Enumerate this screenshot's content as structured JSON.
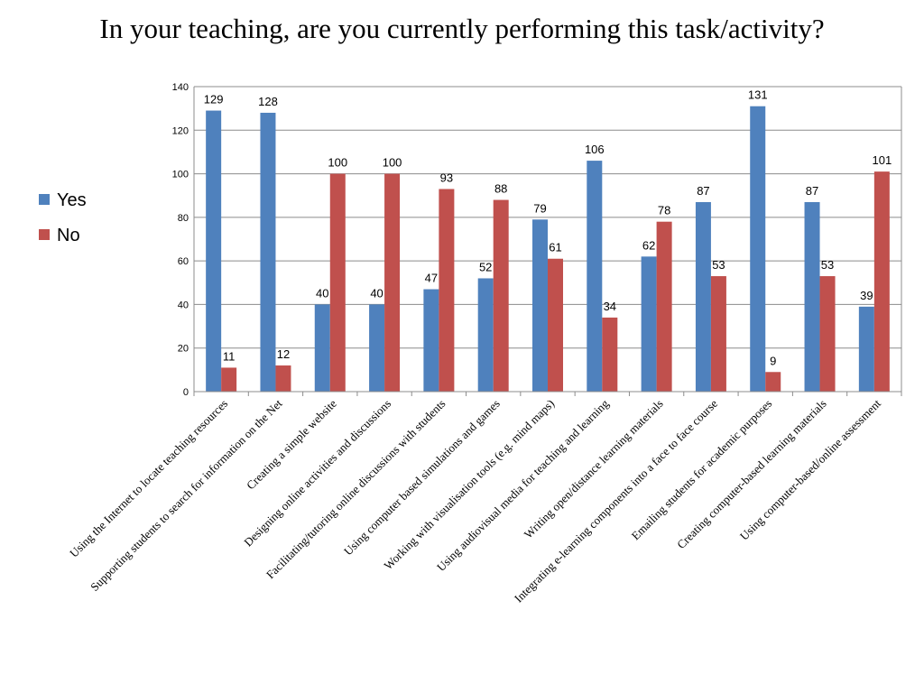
{
  "title": "In your teaching, are you currently performing this task/activity?",
  "chart_data": {
    "type": "bar",
    "title": "In your teaching, are you currently performing this task/activity?",
    "xlabel": "",
    "ylabel": "",
    "ylim": [
      0,
      140
    ],
    "yticks": [
      0,
      20,
      40,
      60,
      80,
      100,
      120,
      140
    ],
    "grid": true,
    "legend_position": "left",
    "categories": [
      "Using the Internet to locate teaching resources",
      "Supporting students to search for information on the Net",
      "Creating a simple website",
      "Designing online activities and discussions",
      "Facilitating/tutoring online discussions with students",
      "Using computer based simulations and games",
      "Working with visualisation tools (e.g. mind maps)",
      "Using audiovisual media for teaching and learning",
      "Writing open/distance learning materials",
      "Integrating e-learning components into a face to face course",
      "Emailing students for academic purposes",
      "Creating computer-based learning materials",
      "Using computer-based/online assessment"
    ],
    "series": [
      {
        "name": "Yes",
        "color": "#4f81bd",
        "values": [
          129,
          128,
          40,
          40,
          47,
          52,
          79,
          106,
          62,
          87,
          131,
          87,
          39
        ]
      },
      {
        "name": "No",
        "color": "#c0504d",
        "values": [
          11,
          12,
          100,
          100,
          93,
          88,
          61,
          34,
          78,
          53,
          9,
          53,
          101
        ]
      }
    ]
  }
}
